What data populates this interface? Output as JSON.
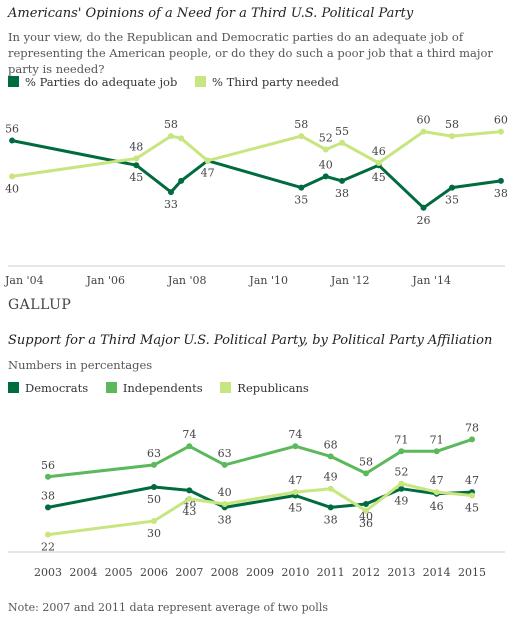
{
  "chart_data": [
    {
      "type": "line",
      "title": "Americans' Opinions of a Need for a Third U.S. Political Party",
      "subtitle": "In your view, do the Republican and Democratic parties do an adequate job of representing the American people, or do they do such a poor job that a third major party is needed?",
      "x_tick_labels": [
        "Jan '04",
        "Jan '06",
        "Jan '08",
        "Jan '10",
        "Jan '12",
        "Jan '14"
      ],
      "x_range": [
        2003.6,
        2015.8
      ],
      "ylim": [
        0,
        75
      ],
      "series": [
        {
          "name": "% Parties do adequate job",
          "color": "#006b3f",
          "x": [
            2003.7,
            2006.75,
            2007.6,
            2007.85,
            2008.5,
            2010.8,
            2011.4,
            2011.8,
            2012.7,
            2013.8,
            2014.5,
            2015.7
          ],
          "values": [
            56,
            45,
            33,
            38,
            47,
            35,
            40,
            38,
            45,
            26,
            35,
            38
          ],
          "labels": [
            "56",
            "45",
            "33",
            "",
            "47",
            "35",
            "40",
            "38",
            "45",
            "26",
            "35",
            "38"
          ]
        },
        {
          "name": "% Third party needed",
          "color": "#c7e67f",
          "x": [
            2003.7,
            2006.75,
            2007.6,
            2007.85,
            2008.5,
            2010.8,
            2011.4,
            2011.8,
            2012.7,
            2013.8,
            2014.5,
            2015.7
          ],
          "values": [
            40,
            48,
            58,
            57,
            47,
            58,
            52,
            55,
            46,
            60,
            58,
            60
          ],
          "labels": [
            "40",
            "48",
            "58",
            "",
            "",
            "58",
            "52",
            "55",
            "46",
            "60",
            "58",
            "60"
          ]
        }
      ]
    },
    {
      "type": "line",
      "title": "Support for a Third Major U.S. Political Party, by Political Party Affiliation",
      "subtitle": "Numbers in percentages",
      "categories": [
        "2003",
        "2004",
        "2005",
        "2006",
        "2007",
        "2008",
        "2009",
        "2010",
        "2011",
        "2012",
        "2013",
        "2014",
        "2015"
      ],
      "ylim": [
        0,
        100
      ],
      "series": [
        {
          "name": "Democrats",
          "color": "#006b3f",
          "values": [
            38,
            null,
            null,
            50,
            48,
            38,
            null,
            45,
            38,
            40,
            49,
            46,
            47
          ],
          "labels": [
            "38",
            "",
            "",
            "50",
            "48",
            "38",
            "",
            "45",
            "38",
            "40",
            "49",
            "46",
            "47"
          ]
        },
        {
          "name": "Independents",
          "color": "#5cb85c",
          "values": [
            56,
            null,
            null,
            63,
            74,
            63,
            null,
            74,
            68,
            58,
            71,
            71,
            78
          ],
          "labels": [
            "56",
            "",
            "",
            "63",
            "74",
            "63",
            "",
            "74",
            "68",
            "58",
            "71",
            "71",
            "78"
          ]
        },
        {
          "name": "Republicans",
          "color": "#c7e67f",
          "values": [
            22,
            null,
            null,
            30,
            43,
            40,
            null,
            47,
            49,
            36,
            52,
            47,
            45
          ],
          "labels": [
            "22",
            "",
            "",
            "30",
            "43",
            "40",
            "",
            "47",
            "49",
            "36",
            "52",
            "47",
            "45"
          ]
        }
      ]
    }
  ],
  "brand": "GALLUP",
  "note": "Note: 2007 and 2011 data represent average of two polls"
}
